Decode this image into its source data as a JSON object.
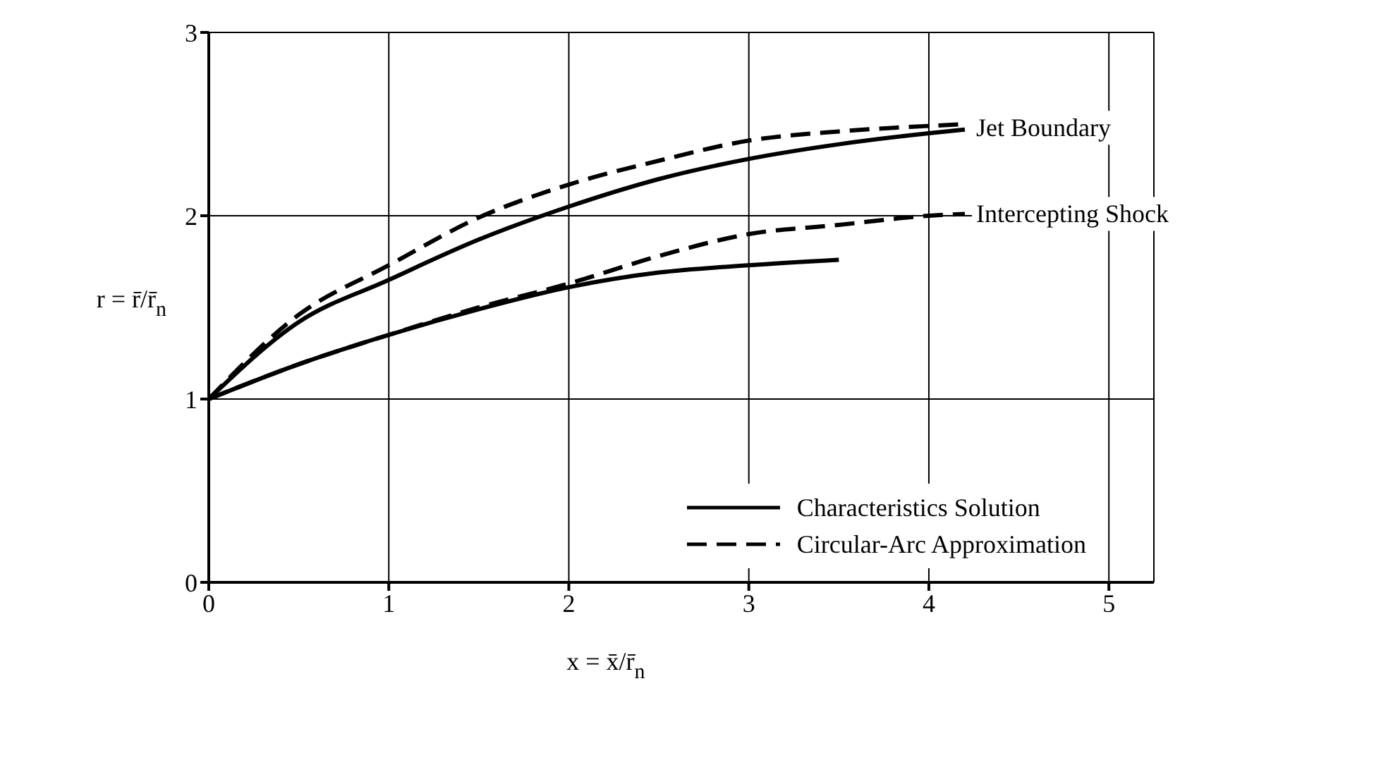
{
  "chart_data": {
    "type": "line",
    "xlabel": "x = x̄/r̄$_{n}$",
    "ylabel": "r = r̄/r̄$_{n}$",
    "xlim": [
      0,
      5.25
    ],
    "ylim": [
      0,
      3
    ],
    "xticks": [
      0,
      1,
      2,
      3,
      4,
      5
    ],
    "yticks": [
      0,
      1,
      2,
      3
    ],
    "grid": true,
    "legend": "bottom right",
    "marker": "none",
    "series": [
      {
        "name": "Characteristics Solution",
        "color": "#000000",
        "line_style": "solid",
        "x": [
          0,
          0.5,
          1,
          1.5,
          2,
          2.5,
          3,
          3.5,
          4,
          4.2
        ],
        "values": [
          1,
          1.42,
          1.65,
          1.87,
          2.05,
          2.2,
          2.31,
          2.39,
          2.45,
          2.47
        ]
      },
      {
        "name": "Circular-Arc Approximation",
        "color": "#000000",
        "line_style": "dashed",
        "x": [
          0,
          0.5,
          1,
          1.5,
          2,
          2.5,
          3,
          3.5,
          4,
          4.2
        ],
        "values": [
          1,
          1.46,
          1.73,
          1.99,
          2.17,
          2.3,
          2.41,
          2.46,
          2.49,
          2.5
        ]
      },
      {
        "color": "#000000",
        "line_style": "solid",
        "x": [
          0,
          0.5,
          1,
          1.5,
          2,
          2.5,
          3,
          3.5
        ],
        "values": [
          1,
          1.19,
          1.35,
          1.49,
          1.61,
          1.69,
          1.73,
          1.76
        ]
      },
      {
        "color": "#000000",
        "line_style": "dashed",
        "x": [
          0,
          0.5,
          1,
          1.5,
          2,
          2.5,
          3,
          3.5,
          4,
          4.2
        ],
        "values": [
          1,
          1.19,
          1.35,
          1.5,
          1.63,
          1.78,
          1.9,
          1.95,
          2,
          2.01
        ]
      }
    ],
    "annotations": [
      {
        "text": "Jet Boundary",
        "x": 4.2,
        "y": 2.48
      },
      {
        "text": "Intercepting Shock",
        "x": 4.2,
        "y": 2.01
      }
    ]
  }
}
